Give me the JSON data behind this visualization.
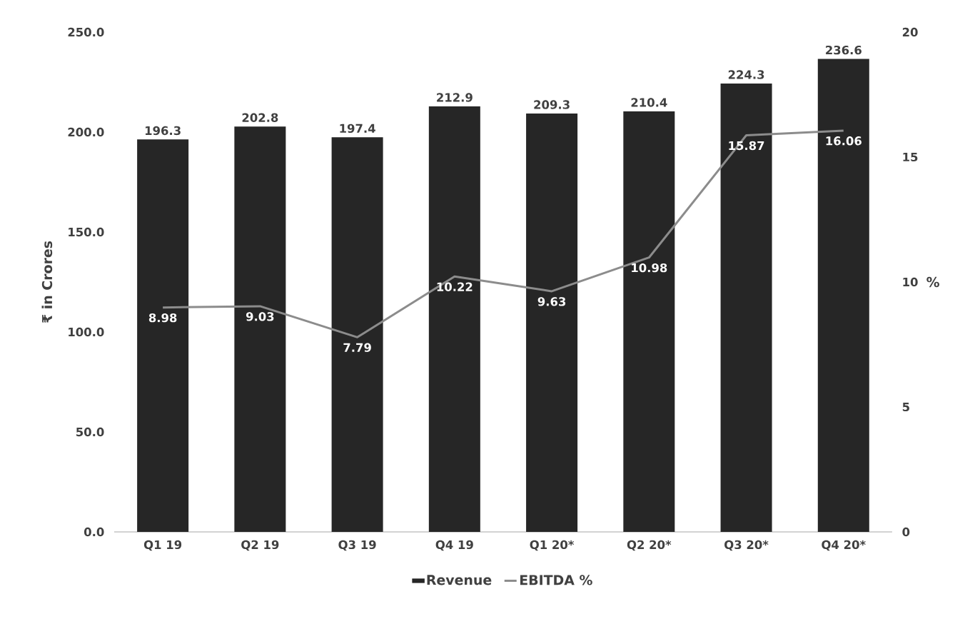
{
  "chart_data": {
    "type": "bar",
    "ylabel": "₹ in Crores",
    "y2label": "%",
    "categories": [
      "Q1 19",
      "Q2 19",
      "Q3 19",
      "Q4 19",
      "Q1 20*",
      "Q2 20*",
      "Q3 20*",
      "Q4 20*"
    ],
    "series": [
      {
        "name": "Revenue",
        "color": "#262626",
        "values": [
          196.3,
          202.8,
          197.4,
          212.9,
          209.3,
          210.4,
          224.3,
          236.6
        ]
      },
      {
        "name": "EBITDA %",
        "type": "line",
        "axis": "y2",
        "color": "#8c8c8c",
        "values": [
          8.98,
          9.03,
          7.79,
          10.22,
          9.63,
          10.98,
          15.87,
          16.06
        ]
      }
    ],
    "ylim": [
      0,
      250
    ],
    "yticks": [
      {
        "value": 0,
        "label": "0.0"
      },
      {
        "value": 50,
        "label": "50.0"
      },
      {
        "value": 100,
        "label": "100.0"
      },
      {
        "value": 150,
        "label": "150.0"
      },
      {
        "value": 200,
        "label": "200.0"
      },
      {
        "value": 250,
        "label": "250.0"
      }
    ],
    "y2lim": [
      0,
      20
    ],
    "y2ticks": [
      0,
      5,
      10,
      15,
      20
    ],
    "data_labels": true,
    "legend": "bottom",
    "marker": "none",
    "line_style": "solid"
  }
}
